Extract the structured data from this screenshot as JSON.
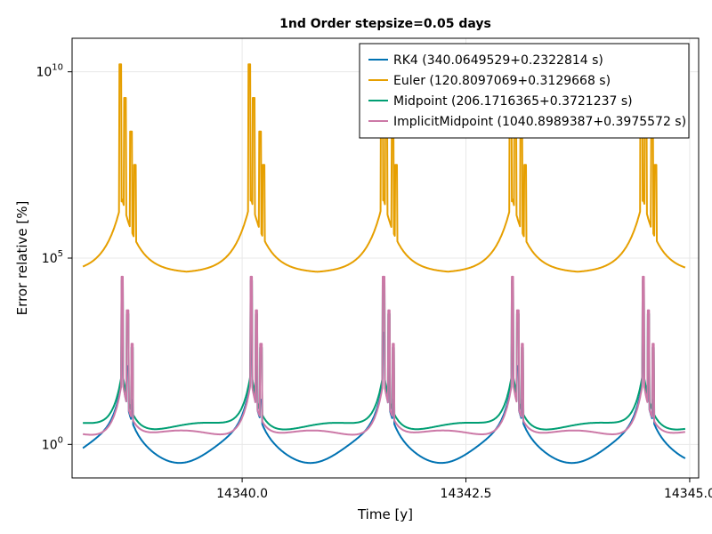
{
  "chart_data": {
    "type": "line",
    "title": "1nd Order stepsize=0.05 days",
    "xlabel": "Time [y]",
    "ylabel": "Error relative [%]",
    "xlim": [
      14338.1,
      14345.1
    ],
    "y_scale": "log10",
    "ylim_exponent": [
      -0.9,
      10.9
    ],
    "x_ticks": [
      14340.0,
      14342.5,
      14345.0
    ],
    "x_tick_labels": [
      "14340.0",
      "14342.5",
      "14345.0"
    ],
    "y_ticks_exponent": [
      0,
      5,
      10
    ],
    "grid": true,
    "legend_position": "top-right",
    "peak_times": [
      14338.66,
      14340.1,
      14341.58,
      14343.02,
      14344.48
    ],
    "series": [
      {
        "name": "RK4 (340.0649529+0.2322814 s)",
        "color": "#0072b2",
        "baseline_exponent": -0.15,
        "peak_exponent": 3.8
      },
      {
        "name": "Euler (120.8097069+0.3129668 s)",
        "color": "#e69f00",
        "baseline_exponent": 4.6,
        "peak_exponent": 10.2
      },
      {
        "name": "Midpoint (206.1716365+0.3721237 s)",
        "color": "#009e73",
        "baseline_exponent": 0.45,
        "peak_exponent": 5.2
      },
      {
        "name": "ImplicitMidpoint (1040.8989387+0.3975572 s)",
        "color": "#cc79a7",
        "baseline_exponent": 0.25,
        "peak_exponent": 5.3
      }
    ]
  }
}
